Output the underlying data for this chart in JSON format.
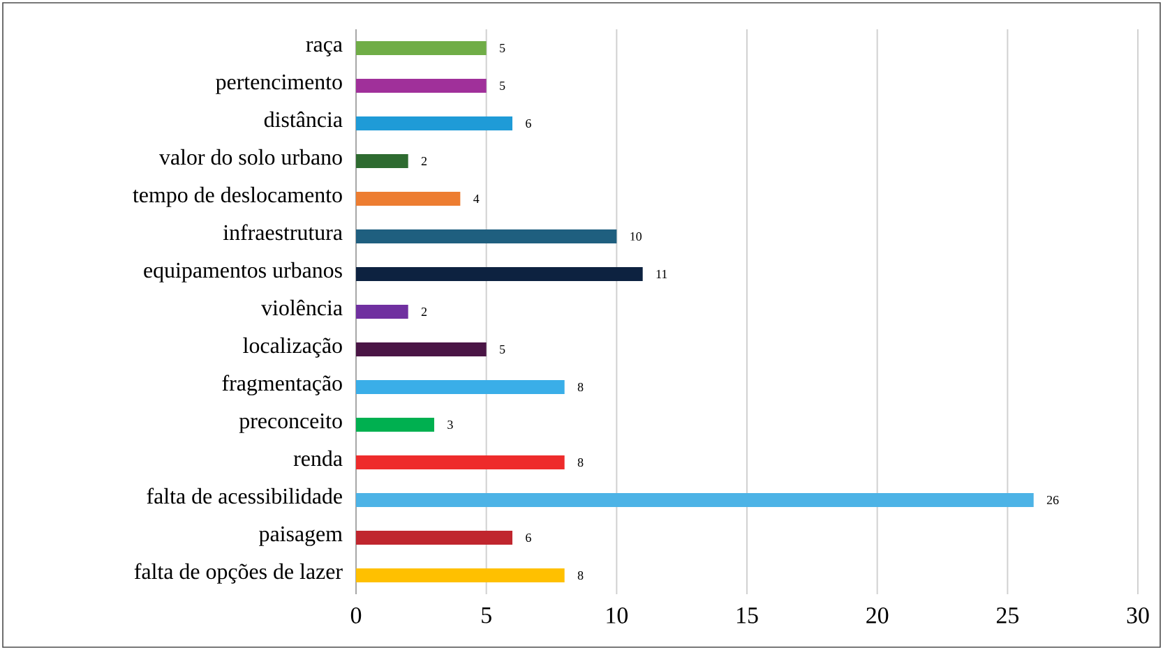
{
  "chart_data": {
    "type": "bar",
    "orientation": "horizontal",
    "categories": [
      "raça",
      "pertencimento",
      "distância",
      "valor do solo urbano",
      "tempo de deslocamento",
      "infraestrutura",
      "equipamentos urbanos",
      "violência",
      "localização",
      "fragmentação",
      "preconceito",
      "renda",
      "falta de acessibilidade",
      "paisagem",
      "falta de opções de lazer"
    ],
    "values": [
      5,
      5,
      6,
      2,
      4,
      10,
      11,
      2,
      5,
      8,
      3,
      8,
      26,
      6,
      8
    ],
    "colors": [
      "#70ad47",
      "#a0309a",
      "#1f9bd7",
      "#2e6b30",
      "#ed7d31",
      "#1f5f7f",
      "#0d2240",
      "#7030a0",
      "#4a1545",
      "#3aaee8",
      "#00b050",
      "#ee2b2b",
      "#4db3e6",
      "#c0262e",
      "#ffc000"
    ],
    "xlim": [
      0,
      30
    ],
    "xticks": [
      0,
      5,
      10,
      15,
      20,
      25,
      30
    ],
    "grid": "x",
    "data_labels": true
  }
}
